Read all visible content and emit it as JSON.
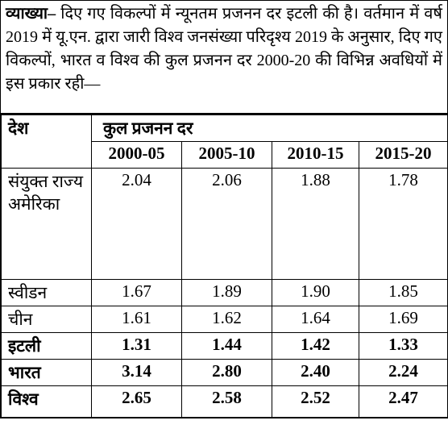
{
  "explanation": {
    "label": "व्याख्या–",
    "text": "दिए गए विकल्पों में न्यूनतम प्रजनन दर इटली की है। वर्तमान में वर्ष 2019 में यू.एन. द्वारा जारी विश्व जनसंख्या परिदृश्य 2019 के अनुसार, दिए गए विकल्पों, भारत व विश्व की कुल प्रजनन दर 2000-20 की विभिन्न अवधियों में इस प्रकार रही—"
  },
  "table": {
    "header": {
      "country": "देश",
      "group": "कुल प्रजनन दर",
      "periods": [
        "2000-05",
        "2005-10",
        "2010-15",
        "2015-20"
      ]
    },
    "rows": [
      [
        "संयुक्त राज्य अमेरिका",
        "2.04",
        "2.06",
        "1.88",
        "1.78"
      ],
      [
        "स्वीडन",
        "1.67",
        "1.89",
        "1.90",
        "1.85"
      ],
      [
        "चीन",
        "1.61",
        "1.62",
        "1.64",
        "1.69"
      ],
      [
        "इटली",
        "1.31",
        "1.44",
        "1.42",
        "1.33"
      ],
      [
        "भारत",
        "3.14",
        "2.80",
        "2.40",
        "2.24"
      ],
      [
        "विश्व",
        "2.65",
        "2.58",
        "2.52",
        "2.47"
      ]
    ]
  }
}
